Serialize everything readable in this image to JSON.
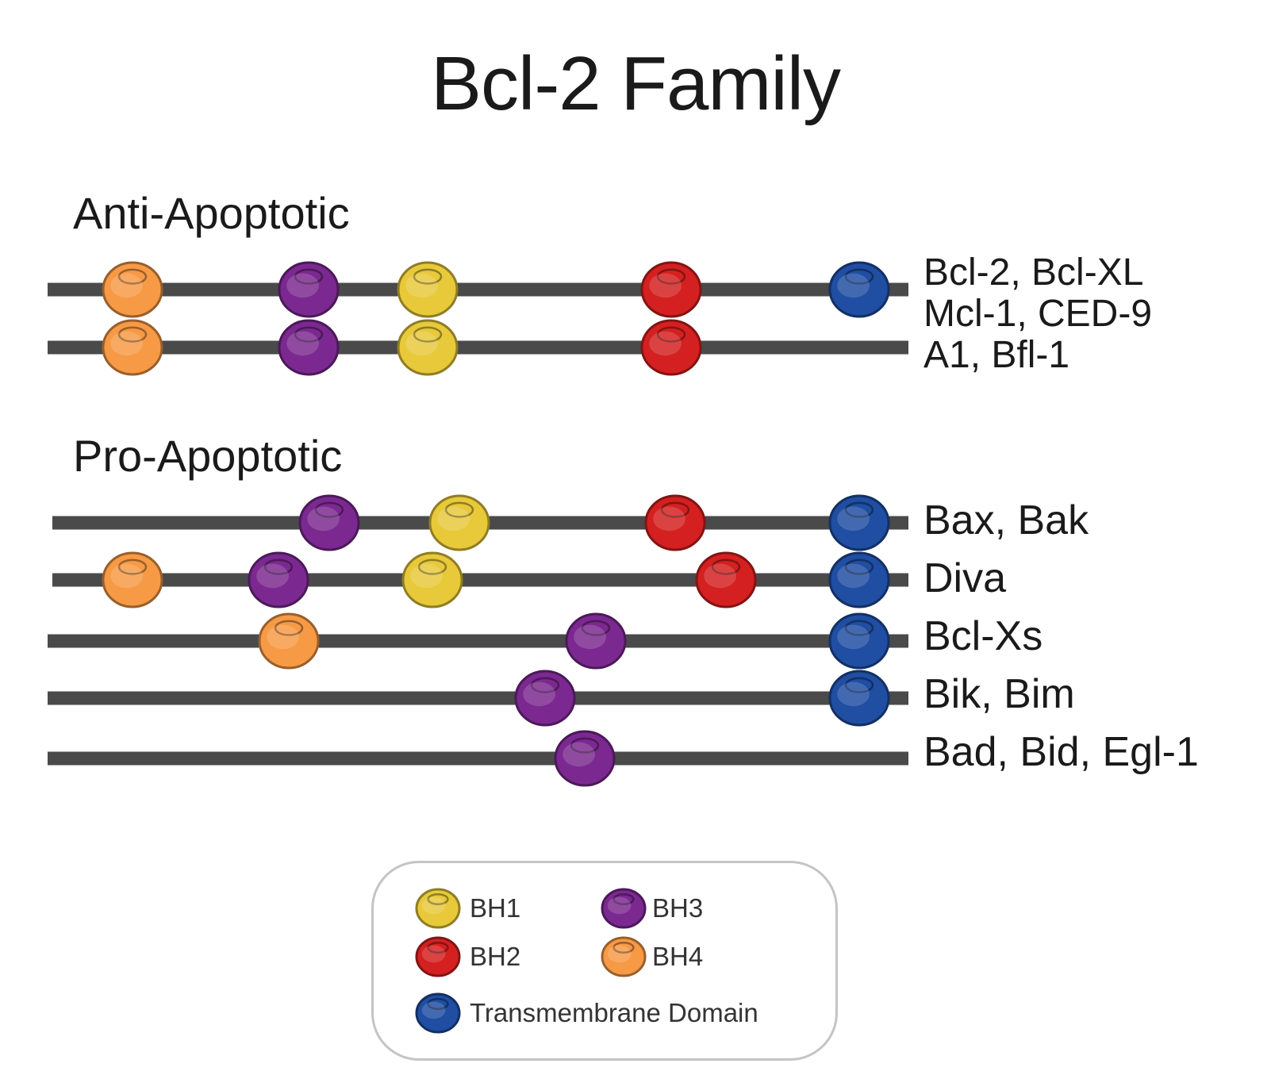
{
  "title": "Bcl-2 Family",
  "sections": {
    "anti": "Anti-Apoptotic",
    "pro": "Pro-Apoptotic"
  },
  "colors": {
    "BH1": "#e7c93a",
    "BH2": "#d42020",
    "BH3": "#7b2990",
    "BH4": "#f79a45",
    "TM": "#1f4ea2",
    "line": "#4a4a4a"
  },
  "rows": [
    {
      "label": "Bcl-2, Bcl-XL",
      "domains": [
        "BH4",
        "BH3",
        "BH1",
        "BH2",
        "TM"
      ]
    },
    {
      "label": "Mcl-1, CED-9",
      "domains": []
    },
    {
      "label": "A1, Bfl-1",
      "domains": [
        "BH4",
        "BH3",
        "BH1",
        "BH2"
      ]
    },
    {
      "label": "Bax, Bak",
      "domains": [
        "BH3",
        "BH1",
        "BH2",
        "TM"
      ]
    },
    {
      "label": "Diva",
      "domains": [
        "BH4",
        "BH3",
        "BH1",
        "BH2",
        "TM"
      ]
    },
    {
      "label": "Bcl-Xs",
      "domains": [
        "BH4",
        "BH3",
        "TM"
      ]
    },
    {
      "label": "Bik, Bim",
      "domains": [
        "BH3",
        "TM"
      ]
    },
    {
      "label": "Bad, Bid, Egl-1",
      "domains": [
        "BH3"
      ]
    }
  ],
  "legend": [
    {
      "key": "BH1",
      "label": "BH1"
    },
    {
      "key": "BH3",
      "label": "BH3"
    },
    {
      "key": "BH2",
      "label": "BH2"
    },
    {
      "key": "BH4",
      "label": "BH4"
    },
    {
      "key": "TM",
      "label": "Transmembrane Domain"
    }
  ]
}
